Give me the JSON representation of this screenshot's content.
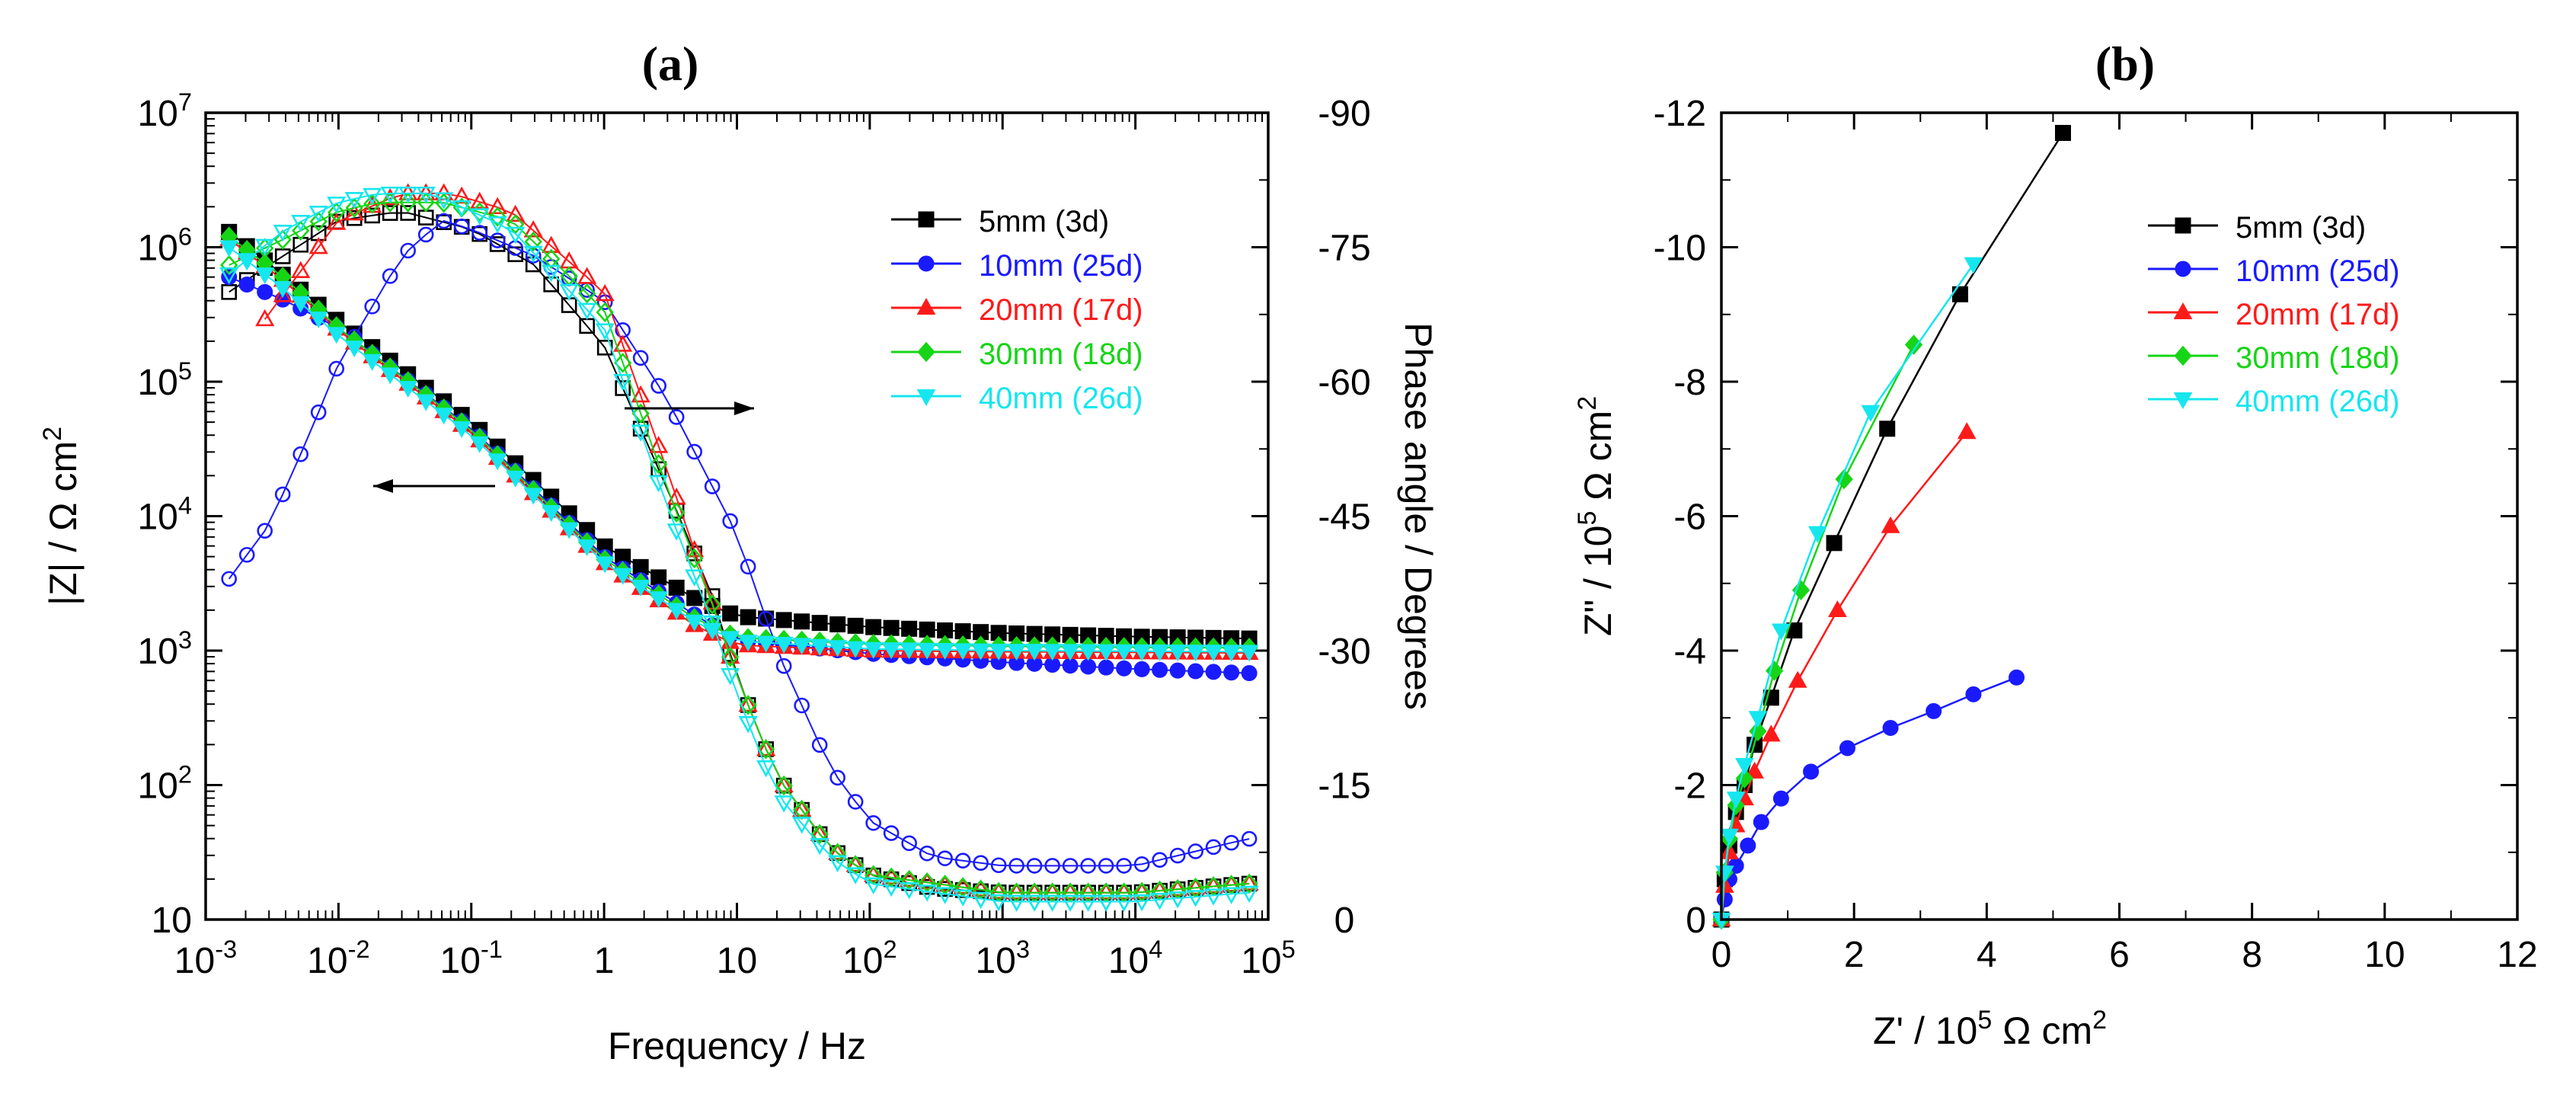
{
  "chart_data": [
    {
      "panel_label": "(a)",
      "type": "line",
      "subtype": "bode",
      "xlabel": "Frequency / Hz",
      "ylabel": "|Z| / Ω cm",
      "ylabel_sup": "2",
      "y2label": "Phase angle / Degrees",
      "xscale": "log",
      "yscale": "log",
      "xlim": [
        0.001,
        100000
      ],
      "ylim": [
        10,
        10000000
      ],
      "y2lim": [
        0,
        -90
      ],
      "x_ticks": [
        {
          "base": "10",
          "exp": "-3",
          "v": 0.001
        },
        {
          "base": "10",
          "exp": "-2",
          "v": 0.01
        },
        {
          "base": "10",
          "exp": "-1",
          "v": 0.1
        },
        {
          "base": "1",
          "exp": "",
          "v": 1
        },
        {
          "base": "10",
          "exp": "",
          "v": 10
        },
        {
          "base": "10",
          "exp": "2",
          "v": 100
        },
        {
          "base": "10",
          "exp": "3",
          "v": 1000
        },
        {
          "base": "10",
          "exp": "4",
          "v": 10000
        },
        {
          "base": "10",
          "exp": "5",
          "v": 100000
        }
      ],
      "y_ticks": [
        {
          "base": "10",
          "exp": "7",
          "v": 10000000
        },
        {
          "base": "10",
          "exp": "6",
          "v": 1000000
        },
        {
          "base": "10",
          "exp": "5",
          "v": 100000
        },
        {
          "base": "10",
          "exp": "4",
          "v": 10000
        },
        {
          "base": "10",
          "exp": "3",
          "v": 1000
        },
        {
          "base": "10",
          "exp": "2",
          "v": 100
        },
        {
          "base": "10",
          "exp": "",
          "v": 10
        }
      ],
      "y2_ticks": [
        "-90",
        "-75",
        "-60",
        "-45",
        "-30",
        "-15",
        "0"
      ],
      "series": [
        {
          "name": "5mm (3d)",
          "color": "#000000",
          "marker": "square",
          "modulus": [
            [
              0.0015,
              1300000
            ],
            [
              0.004,
              600000
            ],
            [
              0.01,
              280000
            ],
            [
              0.1,
              50000
            ],
            [
              1,
              6000
            ],
            [
              5,
              2400
            ],
            [
              10,
              1800
            ],
            [
              100,
              1500
            ],
            [
              1000,
              1350
            ],
            [
              10000,
              1270
            ],
            [
              70000,
              1230
            ]
          ],
          "phase": [
            [
              0.0015,
              -70
            ],
            [
              0.003,
              -73
            ],
            [
              0.01,
              -78
            ],
            [
              0.03,
              -79
            ],
            [
              0.1,
              -77
            ],
            [
              0.3,
              -73
            ],
            [
              1,
              -64
            ],
            [
              3,
              -48
            ],
            [
              7,
              -35
            ],
            [
              10,
              -27
            ],
            [
              20,
              -16
            ],
            [
              50,
              -8
            ],
            [
              100,
              -5
            ],
            [
              300,
              -3.5
            ],
            [
              1000,
              -3
            ],
            [
              10000,
              -3
            ],
            [
              70000,
              -4
            ]
          ]
        },
        {
          "name": "10mm (25d)",
          "color": "#1a1aff",
          "marker": "circle",
          "modulus": [
            [
              0.0015,
              600000
            ],
            [
              0.004,
              400000
            ],
            [
              0.01,
              250000
            ],
            [
              0.1,
              45000
            ],
            [
              1,
              5000
            ],
            [
              5,
              1800
            ],
            [
              10,
              1200
            ],
            [
              100,
              950
            ],
            [
              1000,
              820
            ],
            [
              10000,
              730
            ],
            [
              70000,
              680
            ]
          ],
          "phase": [
            [
              0.0015,
              -38
            ],
            [
              0.003,
              -44
            ],
            [
              0.006,
              -54
            ],
            [
              0.01,
              -62
            ],
            [
              0.03,
              -74
            ],
            [
              0.06,
              -78
            ],
            [
              0.1,
              -77
            ],
            [
              0.3,
              -74
            ],
            [
              1,
              -69
            ],
            [
              3,
              -58
            ],
            [
              10,
              -43
            ],
            [
              20,
              -30
            ],
            [
              50,
              -17
            ],
            [
              100,
              -11
            ],
            [
              300,
              -7
            ],
            [
              1000,
              -6
            ],
            [
              10000,
              -6
            ],
            [
              70000,
              -9
            ]
          ]
        },
        {
          "name": "20mm (17d)",
          "color": "#ff1a1a",
          "marker": "triangle",
          "modulus": [
            [
              0.0015,
              1150000
            ],
            [
              0.004,
              550000
            ],
            [
              0.01,
              240000
            ],
            [
              0.1,
              42000
            ],
            [
              1,
              4500
            ],
            [
              5,
              1500
            ],
            [
              10,
              1100
            ],
            [
              100,
              1000
            ],
            [
              1000,
              980
            ],
            [
              10000,
              970
            ],
            [
              70000,
              960
            ]
          ],
          "phase": [
            [
              0.0025,
              -66
            ],
            [
              0.005,
              -72
            ],
            [
              0.01,
              -78
            ],
            [
              0.03,
              -81
            ],
            [
              0.07,
              -81
            ],
            [
              0.2,
              -79
            ],
            [
              1,
              -70
            ],
            [
              3,
              -50
            ],
            [
              7,
              -34
            ],
            [
              10,
              -27
            ],
            [
              20,
              -16
            ],
            [
              50,
              -8
            ],
            [
              100,
              -5
            ],
            [
              1000,
              -3
            ],
            [
              10000,
              -3
            ],
            [
              70000,
              -4
            ]
          ]
        },
        {
          "name": "30mm (18d)",
          "color": "#16d516",
          "marker": "diamond",
          "modulus": [
            [
              0.0015,
              1200000
            ],
            [
              0.004,
              580000
            ],
            [
              0.01,
              250000
            ],
            [
              0.1,
              44000
            ],
            [
              1,
              4800
            ],
            [
              5,
              1700
            ],
            [
              10,
              1250
            ],
            [
              100,
              1120
            ],
            [
              1000,
              1080
            ],
            [
              10000,
              1060
            ],
            [
              70000,
              1050
            ]
          ],
          "phase": [
            [
              0.0015,
              -73
            ],
            [
              0.004,
              -76
            ],
            [
              0.01,
              -79
            ],
            [
              0.02,
              -80
            ],
            [
              0.06,
              -80
            ],
            [
              0.2,
              -78
            ],
            [
              1,
              -68
            ],
            [
              3,
              -48
            ],
            [
              7,
              -34
            ],
            [
              10,
              -27
            ],
            [
              20,
              -16
            ],
            [
              50,
              -8
            ],
            [
              100,
              -5
            ],
            [
              1000,
              -3
            ],
            [
              10000,
              -3
            ],
            [
              70000,
              -4
            ]
          ]
        },
        {
          "name": "40mm (26d)",
          "color": "#16e6ee",
          "marker": "triangle-down",
          "modulus": [
            [
              0.0015,
              1000000
            ],
            [
              0.004,
              480000
            ],
            [
              0.01,
              220000
            ],
            [
              0.1,
              40000
            ],
            [
              1,
              4500
            ],
            [
              5,
              1600
            ],
            [
              10,
              1180
            ],
            [
              100,
              1030
            ],
            [
              1000,
              1000
            ],
            [
              10000,
              990
            ],
            [
              70000,
              980
            ]
          ],
          "phase": [
            [
              0.0015,
              -72
            ],
            [
              0.004,
              -77
            ],
            [
              0.01,
              -80
            ],
            [
              0.02,
              -81
            ],
            [
              0.05,
              -81
            ],
            [
              0.2,
              -77
            ],
            [
              1,
              -66
            ],
            [
              3,
              -46
            ],
            [
              7,
              -32
            ],
            [
              10,
              -25
            ],
            [
              20,
              -14
            ],
            [
              50,
              -7
            ],
            [
              100,
              -4
            ],
            [
              1000,
              -2
            ],
            [
              10000,
              -2
            ],
            [
              70000,
              -3
            ]
          ]
        }
      ],
      "annotations": [
        "arrow-left at |Z| curve",
        "arrow-right at phase curve"
      ]
    },
    {
      "panel_label": "(b)",
      "type": "line",
      "subtype": "nyquist",
      "xlabel": "Z' / 10",
      "xlabel_sup": "5",
      "xlabel_tail": " Ω cm",
      "xlabel_sup2": "2",
      "ylabel": "Z\" / 10",
      "ylabel_sup": "5",
      "ylabel_tail": " Ω cm",
      "ylabel_sup2": "2",
      "xlim": [
        0,
        12
      ],
      "ylim": [
        0,
        -12
      ],
      "x_ticks": [
        "0",
        "2",
        "4",
        "6",
        "8",
        "10",
        "12"
      ],
      "y_ticks": [
        "-12",
        "-10",
        "-8",
        "-6",
        "-4",
        "-2",
        "0"
      ],
      "series": [
        {
          "name": "5mm (3d)",
          "color": "#000000",
          "marker": "square",
          "points": [
            [
              0,
              0
            ],
            [
              0.05,
              -0.6
            ],
            [
              0.12,
              -1.1
            ],
            [
              0.22,
              -1.6
            ],
            [
              0.35,
              -2.0
            ],
            [
              0.5,
              -2.6
            ],
            [
              0.75,
              -3.3
            ],
            [
              1.1,
              -4.3
            ],
            [
              1.7,
              -5.6
            ],
            [
              2.5,
              -7.3
            ],
            [
              3.6,
              -9.3
            ],
            [
              5.15,
              -11.7
            ]
          ]
        },
        {
          "name": "10mm (25d)",
          "color": "#1a1aff",
          "marker": "circle",
          "points": [
            [
              0,
              0
            ],
            [
              0.05,
              -0.3
            ],
            [
              0.12,
              -0.6
            ],
            [
              0.22,
              -0.8
            ],
            [
              0.4,
              -1.1
            ],
            [
              0.6,
              -1.45
            ],
            [
              0.9,
              -1.8
            ],
            [
              1.35,
              -2.2
            ],
            [
              1.9,
              -2.55
            ],
            [
              2.55,
              -2.85
            ],
            [
              3.2,
              -3.1
            ],
            [
              3.8,
              -3.35
            ],
            [
              4.45,
              -3.6
            ]
          ]
        },
        {
          "name": "20mm (17d)",
          "color": "#ff1a1a",
          "marker": "triangle",
          "points": [
            [
              0,
              0
            ],
            [
              0.05,
              -0.5
            ],
            [
              0.12,
              -1.0
            ],
            [
              0.22,
              -1.4
            ],
            [
              0.35,
              -1.8
            ],
            [
              0.5,
              -2.2
            ],
            [
              0.75,
              -2.75
            ],
            [
              1.15,
              -3.55
            ],
            [
              1.75,
              -4.6
            ],
            [
              2.55,
              -5.85
            ],
            [
              3.7,
              -7.25
            ]
          ]
        },
        {
          "name": "30mm (18d)",
          "color": "#16d516",
          "marker": "diamond",
          "points": [
            [
              0,
              0
            ],
            [
              0.05,
              -0.7
            ],
            [
              0.12,
              -1.2
            ],
            [
              0.22,
              -1.7
            ],
            [
              0.35,
              -2.1
            ],
            [
              0.55,
              -2.8
            ],
            [
              0.8,
              -3.7
            ],
            [
              1.2,
              -4.9
            ],
            [
              1.85,
              -6.55
            ],
            [
              2.9,
              -8.55
            ]
          ]
        },
        {
          "name": "40mm (26d)",
          "color": "#16e6ee",
          "marker": "triangle-down",
          "points": [
            [
              0,
              0
            ],
            [
              0.05,
              -0.7
            ],
            [
              0.12,
              -1.25
            ],
            [
              0.22,
              -1.8
            ],
            [
              0.35,
              -2.3
            ],
            [
              0.55,
              -3.0
            ],
            [
              0.9,
              -4.3
            ],
            [
              1.45,
              -5.75
            ],
            [
              2.25,
              -7.55
            ],
            [
              3.8,
              -9.75
            ]
          ]
        }
      ]
    }
  ]
}
